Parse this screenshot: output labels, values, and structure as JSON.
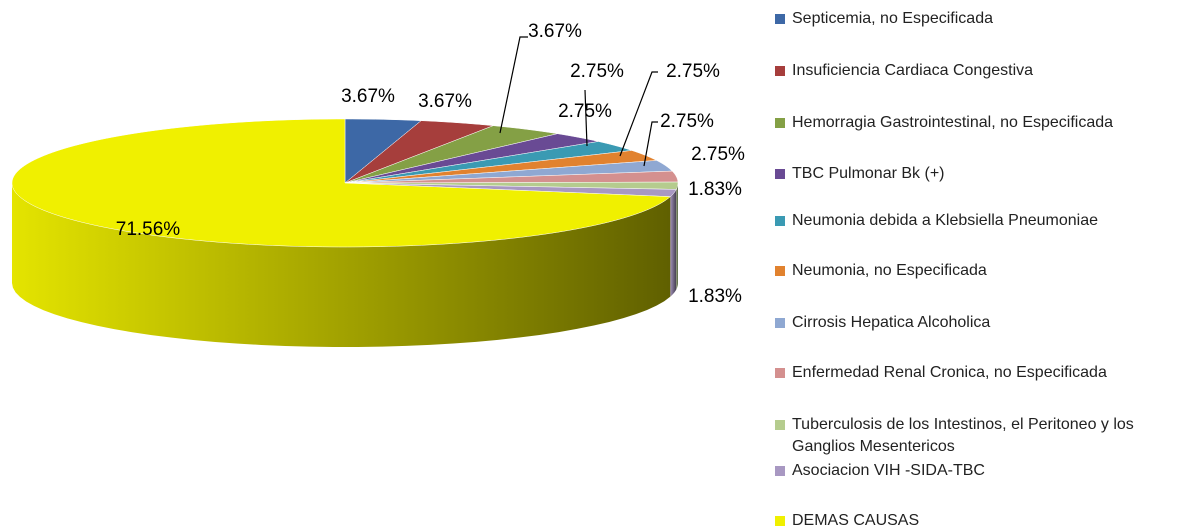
{
  "chart_data": {
    "type": "pie",
    "categories": [
      "Septicemia, no Especificada",
      "Insuficiencia Cardiaca Congestiva",
      "Hemorragia Gastrointestinal, no Especificada",
      "TBC Pulmonar  Bk (+)",
      "Neumonia debida a Klebsiella Pneumoniae",
      "Neumonia, no Especificada",
      "Cirrosis Hepatica Alcoholica",
      "Enfermedad Renal Cronica, no Especificada",
      "Tuberculosis de los Intestinos, el Peritoneo y los Ganglios Mesentericos",
      "Asociacion VIH -SIDA-TBC",
      "DEMAS CAUSAS"
    ],
    "values": [
      3.67,
      3.67,
      3.67,
      2.75,
      2.75,
      2.75,
      2.75,
      2.75,
      1.83,
      1.83,
      71.56
    ],
    "value_labels": [
      "3.67%",
      "3.67%",
      "3.67%",
      "2.75%",
      "2.75%",
      "2.75%",
      "2.75%",
      "2.75%",
      "1.83%",
      "1.83%",
      "71.56%"
    ],
    "colors": [
      "#3d68a6",
      "#a63e3c",
      "#84a045",
      "#694a94",
      "#3a9ab3",
      "#e1822f",
      "#8fa8d2",
      "#d4908f",
      "#b5cc8e",
      "#a898c2",
      "#f0f000"
    ],
    "legend": "right"
  }
}
